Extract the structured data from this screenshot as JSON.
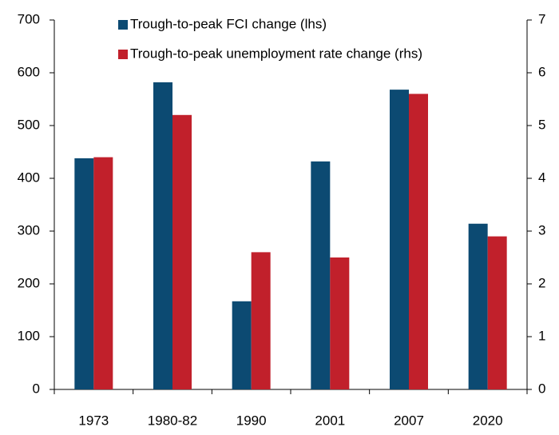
{
  "chart_data": {
    "type": "bar",
    "categories": [
      "1973",
      "1980-82",
      "1990",
      "2001",
      "2007",
      "2020"
    ],
    "series": [
      {
        "name": "Trough-to-peak FCI change (lhs)",
        "color": "#0c4a72",
        "values": [
          438,
          582,
          167,
          432,
          568,
          314
        ]
      },
      {
        "name": "Trough-to-peak unemployment rate change (rhs)",
        "color": "#c1202b",
        "axis": "y2",
        "values": [
          4.4,
          5.2,
          2.6,
          2.5,
          5.6,
          2.9
        ]
      }
    ],
    "ylim": [
      0,
      700
    ],
    "yticks": [
      0,
      100,
      200,
      300,
      400,
      500,
      600,
      700
    ],
    "y2lim": [
      0,
      7
    ],
    "y2ticks": [
      0,
      1,
      2,
      3,
      4,
      5,
      6,
      7
    ]
  }
}
